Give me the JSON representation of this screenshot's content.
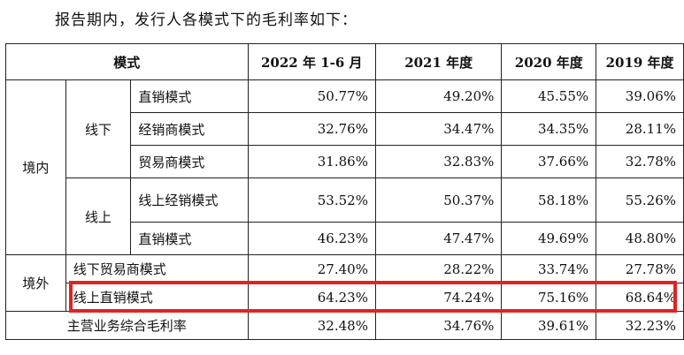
{
  "intro": "报告期内，发行人各模式下的毛利率如下：",
  "header": {
    "mode": "模式",
    "col1": "2022 年 1-6 月",
    "col2": "2021 年度",
    "col3": "2020 年度",
    "col4": "2019 年度"
  },
  "groups": {
    "domestic": "境内",
    "offline": "线下",
    "online": "线上",
    "overseas": "境外"
  },
  "rows": [
    {
      "label": "直销模式",
      "v": [
        "50.77%",
        "49.20%",
        "45.55%",
        "39.06%"
      ]
    },
    {
      "label": "经销商模式",
      "v": [
        "32.76%",
        "34.47%",
        "34.35%",
        "28.11%"
      ]
    },
    {
      "label": "贸易商模式",
      "v": [
        "31.86%",
        "32.83%",
        "37.66%",
        "32.78%"
      ]
    },
    {
      "label": "线上经销模式",
      "v": [
        "53.52%",
        "50.37%",
        "58.18%",
        "55.26%"
      ]
    },
    {
      "label": "直销模式",
      "v": [
        "46.23%",
        "47.47%",
        "49.69%",
        "48.80%"
      ]
    },
    {
      "label": "线下贸易商模式",
      "v": [
        "27.40%",
        "28.22%",
        "33.74%",
        "27.78%"
      ]
    },
    {
      "label": "线上直销模式",
      "v": [
        "64.23%",
        "74.24%",
        "75.16%",
        "68.64%"
      ]
    },
    {
      "label": "主营业务综合毛利率",
      "v": [
        "32.48%",
        "34.76%",
        "39.61%",
        "32.23%"
      ]
    }
  ],
  "highlight_color": "#e32222"
}
